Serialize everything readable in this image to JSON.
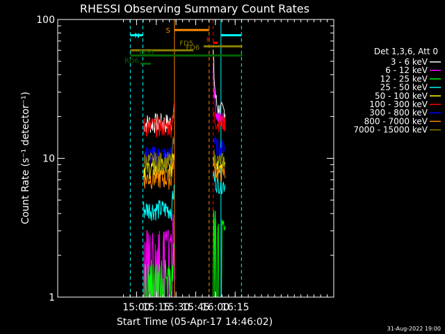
{
  "chart_data": {
    "type": "line",
    "title": "RHESSI Observing Summary Count Rates",
    "xlabel": "Start Time (05-Apr-17 14:46:02)",
    "ylabel": "Count Rate (s⁻¹ detector⁻¹)",
    "yscale": "log",
    "ylim": [
      1,
      100
    ],
    "xlim_minutes": [
      14.0,
      17.5
    ],
    "x_ticks": [
      "15:00",
      "15:15",
      "15:30",
      "15:45",
      "16:00",
      "16:15"
    ],
    "y_ticks": [
      "1",
      "10",
      "100"
    ],
    "legend_title": "Det 1,3,6, Att 0",
    "legend_position": "right",
    "series": [
      {
        "name": "3 - 6 keV",
        "color": "#ffffff",
        "level1": 18,
        "level2": 22,
        "flare_peak": 58
      },
      {
        "name": "6 - 12 keV",
        "color": "#ff00ff",
        "level1": 2.6,
        "level2": 19,
        "flare_peak": 45
      },
      {
        "name": "12 - 25 keV",
        "color": "#00ff00",
        "level1": 1.6,
        "level2": 3.3,
        "flare_peak": 5
      },
      {
        "name": "25 - 50 keV",
        "color": "#00ffff",
        "level1": 4.3,
        "level2": 6.5,
        "flare_peak": 8
      },
      {
        "name": "50 - 100 keV",
        "color": "#ffff00",
        "level1": 8.5,
        "level2": 9.0,
        "flare_peak": 11
      },
      {
        "name": "100 - 300 keV",
        "color": "#ff0000",
        "level1": 17,
        "level2": 18,
        "flare_peak": 22
      },
      {
        "name": "300 - 800 keV",
        "color": "#0000ff",
        "level1": 10.5,
        "level2": 12,
        "flare_peak": 15
      },
      {
        "name": "800 - 7000 keV",
        "color": "#ff8c00",
        "level1": 7.2,
        "level2": 7.8,
        "flare_peak": 10
      },
      {
        "name": "7000 - 15000 keV",
        "color": "#8b8000",
        "level1": 9.5,
        "level2": 9.5,
        "flare_peak": 11
      }
    ],
    "segments": [
      {
        "label": "N",
        "color": "#00ffff",
        "ranges": [
          [
            14.92,
            15.08
          ],
          [
            16.07,
            16.33
          ]
        ],
        "y": 77
      },
      {
        "label": "S",
        "color": "#ff8c00",
        "ranges": [
          [
            15.48,
            15.92
          ]
        ],
        "y": 84
      },
      {
        "label": "F",
        "color": "#ff0000",
        "ranges": [
          [
            15.97,
            16.03
          ]
        ],
        "y": 68
      },
      {
        "label": "FD5",
        "color": "#8b8000",
        "ranges": [
          [
            15.85,
            16.34
          ]
        ],
        "y": 64
      },
      {
        "label": "FD6",
        "color": "#8b8000",
        "ranges": [
          [
            14.92,
            15.72
          ]
        ],
        "y": 60
      },
      {
        "label": "RD0",
        "color": "#006400",
        "ranges": [
          [
            14.92,
            16.34
          ]
        ],
        "y": 55
      },
      {
        "label": "RD6",
        "color": "#006400",
        "ranges": [
          [
            15.05,
            15.18
          ]
        ],
        "y": 48
      }
    ],
    "vlines": [
      {
        "x": 14.92,
        "color": "#00ffff",
        "style": "dash"
      },
      {
        "x": 15.08,
        "color": "#00ffff",
        "style": "dash"
      },
      {
        "x": 15.48,
        "color": "#ff8c00",
        "style": "solid"
      },
      {
        "x": 15.92,
        "color": "#ff8c00",
        "style": "dash"
      },
      {
        "x": 15.97,
        "color": "#ff0000",
        "style": "dash"
      },
      {
        "x": 16.07,
        "color": "#00ffff",
        "style": "solid"
      },
      {
        "x": 16.33,
        "color": "#00ffff",
        "style": "dash"
      }
    ],
    "data_windows": [
      [
        15.09,
        15.48
      ],
      [
        15.97,
        16.13
      ]
    ]
  },
  "footer_date": "31-Aug-2022 19:00"
}
